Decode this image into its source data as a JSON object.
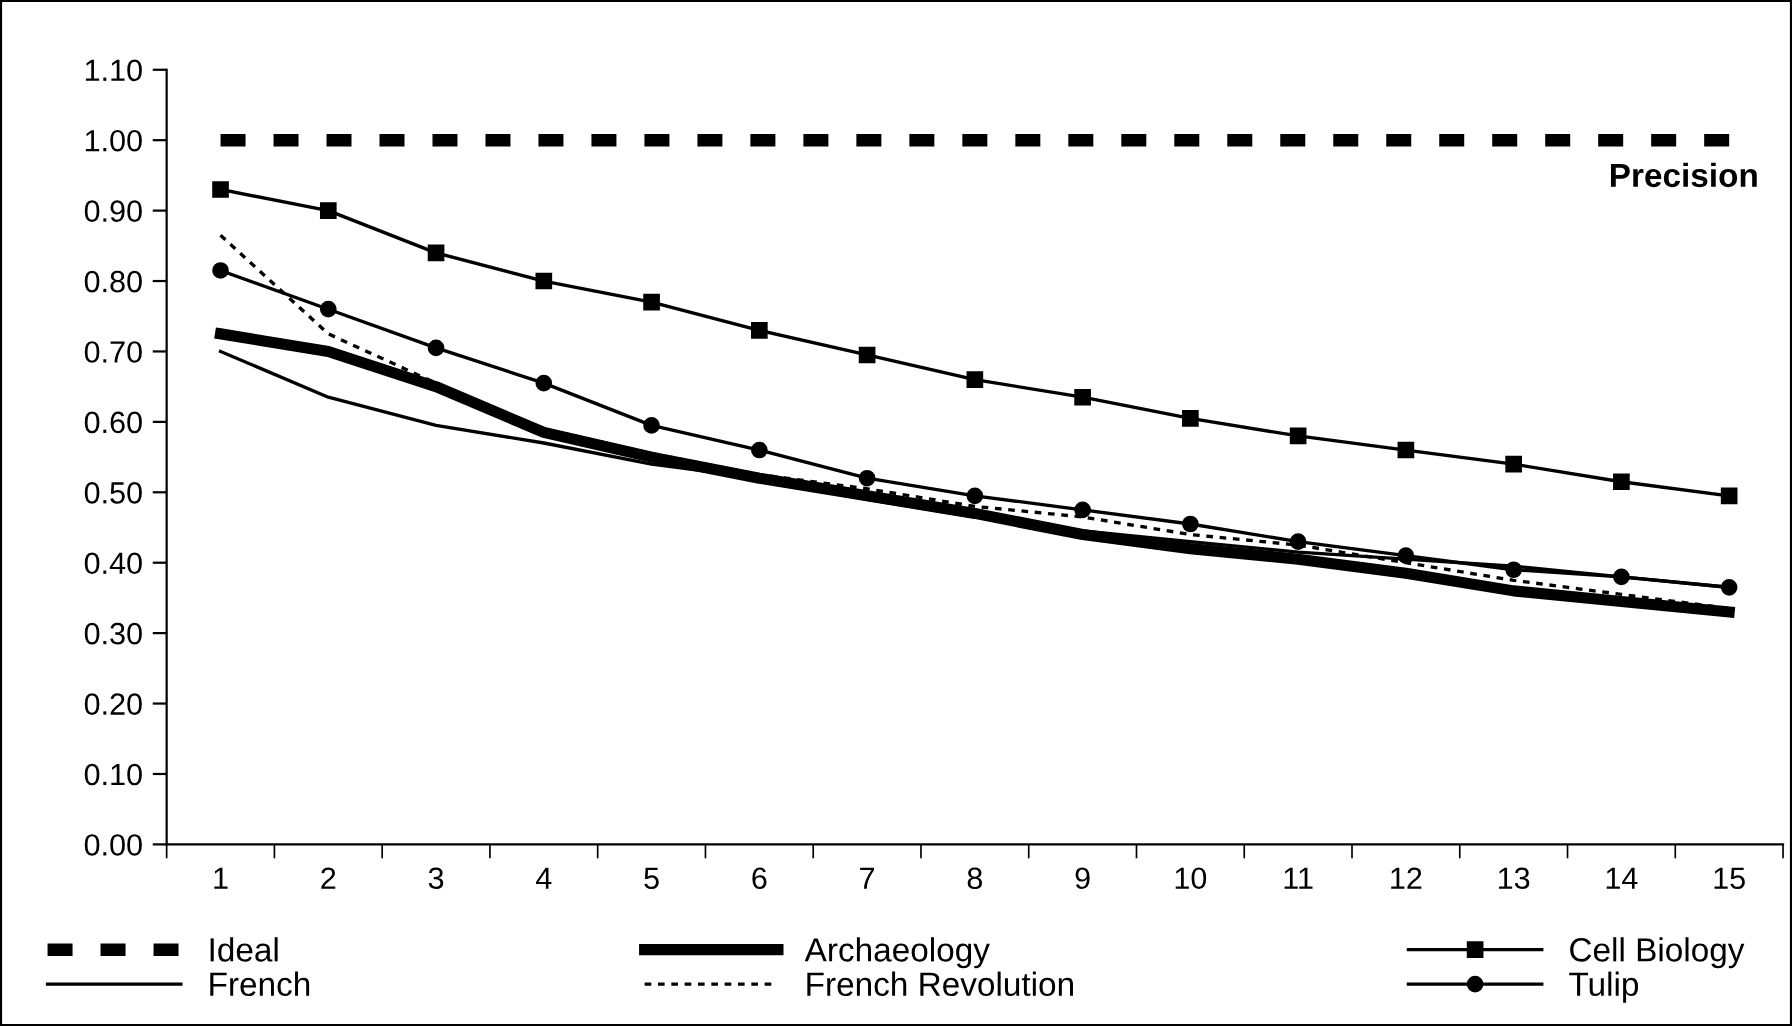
{
  "chart_data": {
    "type": "line",
    "categories": [
      "1",
      "2",
      "3",
      "4",
      "5",
      "6",
      "7",
      "8",
      "9",
      "10",
      "11",
      "12",
      "13",
      "14",
      "15"
    ],
    "ylim": [
      0,
      1.1
    ],
    "yticks": [
      {
        "value": 0,
        "label": "0.00"
      },
      {
        "value": 0.1,
        "label": "0.10"
      },
      {
        "value": 0.2,
        "label": "0.20"
      },
      {
        "value": 0.3,
        "label": "0.30"
      },
      {
        "value": 0.4,
        "label": "0.40"
      },
      {
        "value": 0.5,
        "label": "0.50"
      },
      {
        "value": 0.6,
        "label": "0.60"
      },
      {
        "value": 0.7,
        "label": "0.70"
      },
      {
        "value": 0.8,
        "label": "0.80"
      },
      {
        "value": 0.9,
        "label": "0.90"
      },
      {
        "value": 1.0,
        "label": "1.00"
      },
      {
        "value": 1.1,
        "label": "1.10"
      }
    ],
    "annotations": [
      "Precision"
    ],
    "legend": "bottom",
    "grid": false,
    "series": [
      {
        "name": "Ideal",
        "color": "#000000",
        "line_style": "dashed",
        "marker": "none",
        "values": [
          1,
          1,
          1,
          1,
          1,
          1,
          1,
          1,
          1,
          1,
          1,
          1,
          1,
          1,
          1
        ]
      },
      {
        "name": "French",
        "color": "#000000",
        "line_style": "solid",
        "marker": "none",
        "values": [
          0.7,
          0.635,
          0.595,
          0.57,
          0.54,
          0.52,
          0.49,
          0.465,
          0.445,
          0.43,
          0.415,
          0.405,
          0.395,
          0.38,
          0.365
        ]
      },
      {
        "name": "Archaeology",
        "color": "#000000",
        "line_style": "solid",
        "marker": "none",
        "values": [
          0.725,
          0.7,
          0.65,
          0.585,
          0.55,
          0.52,
          0.495,
          0.47,
          0.44,
          0.42,
          0.405,
          0.385,
          0.36,
          0.345,
          0.33
        ]
      },
      {
        "name": "French Revolution",
        "color": "#000000",
        "line_style": "dotted",
        "marker": "none",
        "values": [
          0.865,
          0.725,
          0.655,
          0.59,
          0.555,
          0.525,
          0.505,
          0.48,
          0.465,
          0.44,
          0.425,
          0.4,
          0.375,
          0.355,
          0.335
        ]
      },
      {
        "name": "Cell Biology",
        "color": "#000000",
        "line_style": "solid",
        "marker": "square",
        "values": [
          0.93,
          0.9,
          0.84,
          0.8,
          0.77,
          0.73,
          0.695,
          0.66,
          0.635,
          0.605,
          0.58,
          0.56,
          0.54,
          0.515,
          0.495
        ]
      },
      {
        "name": "Tulip",
        "color": "#000000",
        "line_style": "solid",
        "marker": "circle",
        "values": [
          0.815,
          0.76,
          0.705,
          0.655,
          0.595,
          0.56,
          0.52,
          0.495,
          0.475,
          0.455,
          0.43,
          0.41,
          0.39,
          0.38,
          0.365
        ]
      }
    ]
  }
}
